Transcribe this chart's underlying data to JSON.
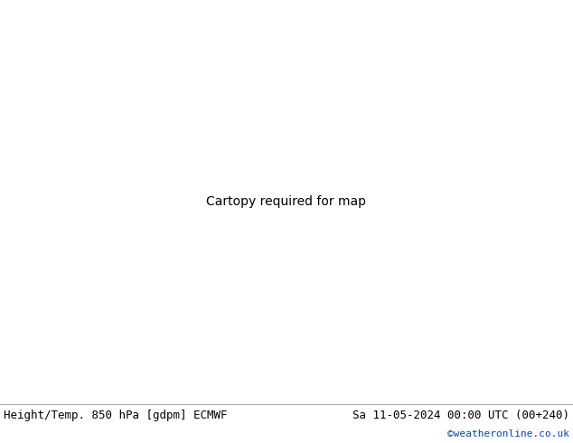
{
  "title_left": "Height/Temp. 850 hPa [gdpm] ECMWF",
  "title_right": "Sa 11-05-2024 00:00 UTC (00+240)",
  "credit": "©weatheronline.co.uk",
  "bg_color": "#c8c8c8",
  "land_color": "#aaaaaa",
  "green_color": "#aade88",
  "sea_color": "#d0d0d0",
  "bottom_bar_color": "#e8e8e8",
  "title_color": "#000000",
  "credit_color": "#0044cc",
  "figwidth": 6.34,
  "figheight": 4.9,
  "dpi": 100,
  "map_extent": [
    -40,
    50,
    25,
    75
  ],
  "contour_black_lw": 2.5,
  "contour_temp_cyan": "#00bbbb",
  "contour_temp_green": "#88cc00",
  "contour_temp_orange": "#ee8800",
  "contour_temp_red": "#cc0000",
  "contour_temp_magenta": "#cc00cc"
}
